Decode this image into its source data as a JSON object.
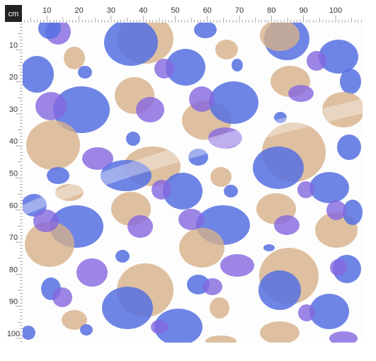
{
  "ruler": {
    "unit": "cm",
    "top": [
      "10",
      "20",
      "30",
      "40",
      "50",
      "60",
      "70",
      "80",
      "90",
      "100"
    ],
    "left": [
      "10",
      "20",
      "30",
      "40",
      "50",
      "60",
      "70",
      "80",
      "90",
      "100"
    ]
  }
}
